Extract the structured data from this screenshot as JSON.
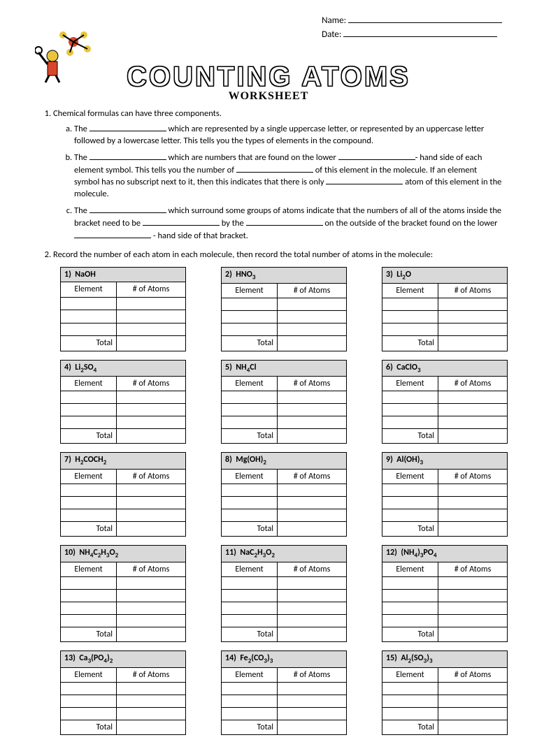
{
  "header": {
    "name_label": "Name:",
    "date_label": "Date:"
  },
  "title": {
    "main": "COUNTING ATOMS",
    "sub": "WORKSHEET"
  },
  "q1": {
    "intro": "Chemical formulas can have three components.",
    "a_prefix": "The",
    "a_text": " which are represented by a single uppercase letter, or represented by an uppercase letter followed by a lowercase letter.  This tells you the types of elements in the compound.",
    "b_prefix": "The",
    "b_mid1": " which are numbers that are found on the lower ",
    "b_mid2": "- hand side of each element symbol.  This tells you the number of ",
    "b_mid3": " of this element in the molecule.  If an element symbol has no subscript next to it, then this indicates that there is only ",
    "b_end": " atom of this element in the molecule.",
    "c_prefix": "The",
    "c_mid1": " which surround some groups of atoms indicate that the numbers of all of the atoms inside the bracket need to be ",
    "c_mid2": " by the ",
    "c_mid3": " on the outside of the bracket found on the lower ",
    "c_end": " - hand side of that bracket."
  },
  "q2": {
    "intro": "Record the number of each atom in each molecule, then record the total number of atoms in the molecule:",
    "columns": {
      "element": "Element",
      "atoms": "# of Atoms",
      "total": "Total"
    },
    "tables": [
      {
        "num": "1)",
        "formula": "NaOH",
        "rows": 3
      },
      {
        "num": "2)",
        "formula": "HNO<sub>3</sub>",
        "rows": 3
      },
      {
        "num": "3)",
        "formula": "Li<sub>2</sub>O",
        "rows": 3
      },
      {
        "num": "4)",
        "formula": "Li<sub>2</sub>SO<sub>4</sub>",
        "rows": 3
      },
      {
        "num": "5)",
        "formula": "NH<sub>4</sub>Cl",
        "rows": 3
      },
      {
        "num": "6)",
        "formula": "CaClO<sub>3</sub>",
        "rows": 3
      },
      {
        "num": "7)",
        "formula": "H<sub>2</sub>COCH<sub>2</sub>",
        "rows": 3
      },
      {
        "num": "8)",
        "formula": "Mg(OH)<sub>2</sub>",
        "rows": 3
      },
      {
        "num": "9)",
        "formula": "Al(OH)<sub>3</sub>",
        "rows": 3
      },
      {
        "num": "10)",
        "formula": "NH<sub>4</sub>C<sub>2</sub>H<sub>3</sub>O<sub>2</sub>",
        "rows": 4
      },
      {
        "num": "11)",
        "formula": "NaC<sub>2</sub>H<sub>3</sub>O<sub>2</sub>",
        "rows": 4
      },
      {
        "num": "12)",
        "formula": "(NH<sub>4</sub>)<sub>3</sub>PO<sub>4</sub>",
        "rows": 4
      },
      {
        "num": "13)",
        "formula": "Ca<sub>3</sub>(PO<sub>4</sub>)<sub>2</sub>",
        "rows": 3
      },
      {
        "num": "14)",
        "formula": "Fe<sub>2</sub>(CO<sub>3</sub>)<sub>3</sub>",
        "rows": 3
      },
      {
        "num": "15)",
        "formula": "Al<sub>2</sub>(SO<sub>3</sub>)<sub>3</sub>",
        "rows": 3
      }
    ]
  },
  "style": {
    "header_bg": "#d9d9d9",
    "border_color": "#000000",
    "page_bg": "#ffffff",
    "body_fontsize": 12.5,
    "title_fontsize": 40
  }
}
